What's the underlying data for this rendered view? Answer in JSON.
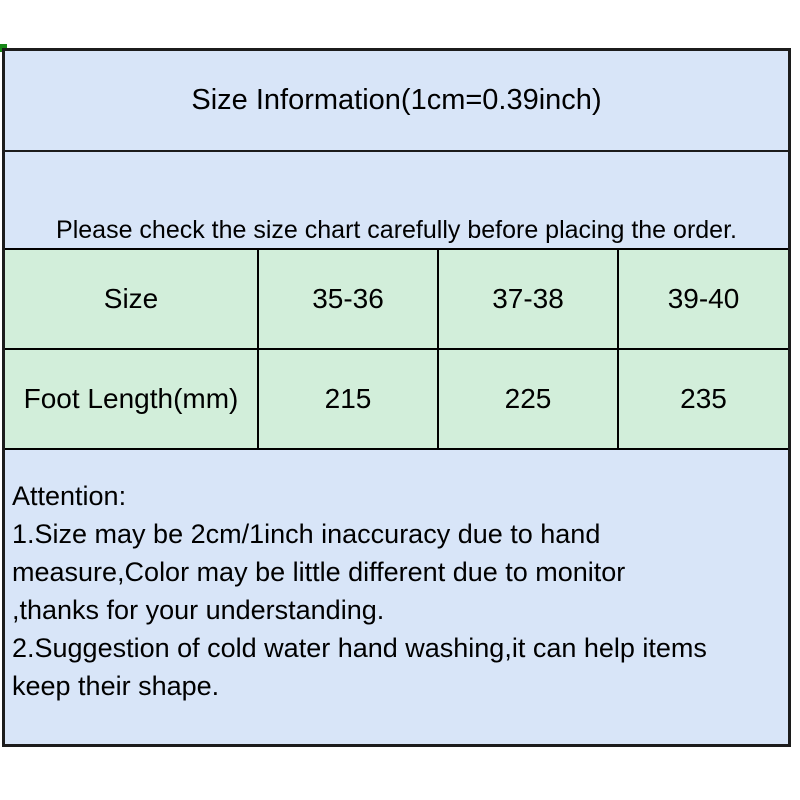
{
  "title": "Size Information(1cm=0.39inch)",
  "notice": "Please check the size chart carefully before placing the order.",
  "size_table": {
    "rows": [
      {
        "header": "Size",
        "values": [
          "35-36",
          "37-38",
          "39-40"
        ]
      },
      {
        "header": "Foot Length(mm)",
        "values": [
          "215",
          "225",
          "235"
        ]
      }
    ]
  },
  "attention": {
    "lines": [
      "Attention:",
      "1.Size may be 2cm/1inch inaccuracy due to hand",
      "measure,Color may be little different due to monitor",
      ",thanks for your understanding.",
      "2.Suggestion of cold water hand washing,it can help items",
      "keep their shape."
    ]
  },
  "colors": {
    "section_background": "#d8e5f8",
    "table_background": "#d2eeda",
    "border": "#1c1c1c",
    "corner_mark": "#178717",
    "text": "#000000"
  }
}
